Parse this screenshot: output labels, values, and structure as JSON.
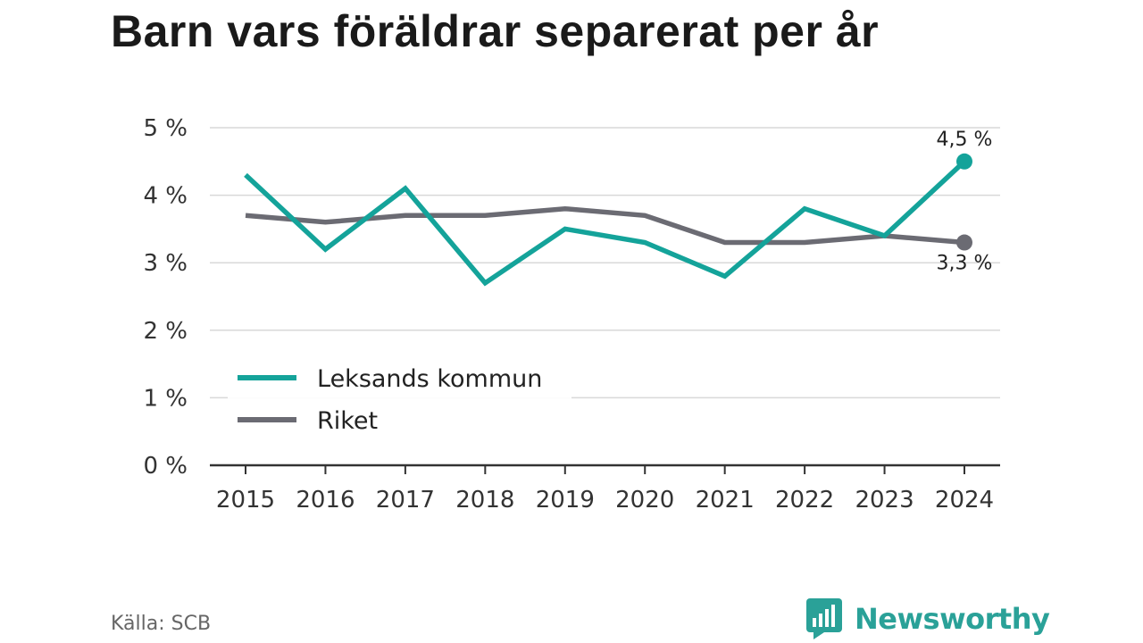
{
  "title": "Barn vars föräldrar separerat per år",
  "source": "Källa: SCB",
  "brand": {
    "name": "Newsworthy",
    "icon": "bar-chart-speech-bubble-icon",
    "color": "#2aa198"
  },
  "chart_data": {
    "type": "line",
    "title": "Barn vars föräldrar separerat per år",
    "xlabel": "",
    "ylabel": "",
    "x": [
      "2015",
      "2016",
      "2017",
      "2018",
      "2019",
      "2020",
      "2021",
      "2022",
      "2023",
      "2024"
    ],
    "ylim": [
      0,
      5
    ],
    "yticks": [
      0,
      1,
      2,
      3,
      4,
      5
    ],
    "ytick_labels": [
      "0 %",
      "1 %",
      "2 %",
      "3 %",
      "4 %",
      "5 %"
    ],
    "grid": "horizontal",
    "legend_position": "lower-left",
    "series": [
      {
        "name": "Leksands kommun",
        "color": "#14a39a",
        "values": [
          4.3,
          3.2,
          4.1,
          2.7,
          3.5,
          3.3,
          2.8,
          3.8,
          3.4,
          4.5
        ],
        "end_label": "4,5 %"
      },
      {
        "name": "Riket",
        "color": "#6b6b73",
        "values": [
          3.7,
          3.6,
          3.7,
          3.7,
          3.8,
          3.7,
          3.3,
          3.3,
          3.4,
          3.3
        ],
        "end_label": "3,3 %"
      }
    ]
  }
}
